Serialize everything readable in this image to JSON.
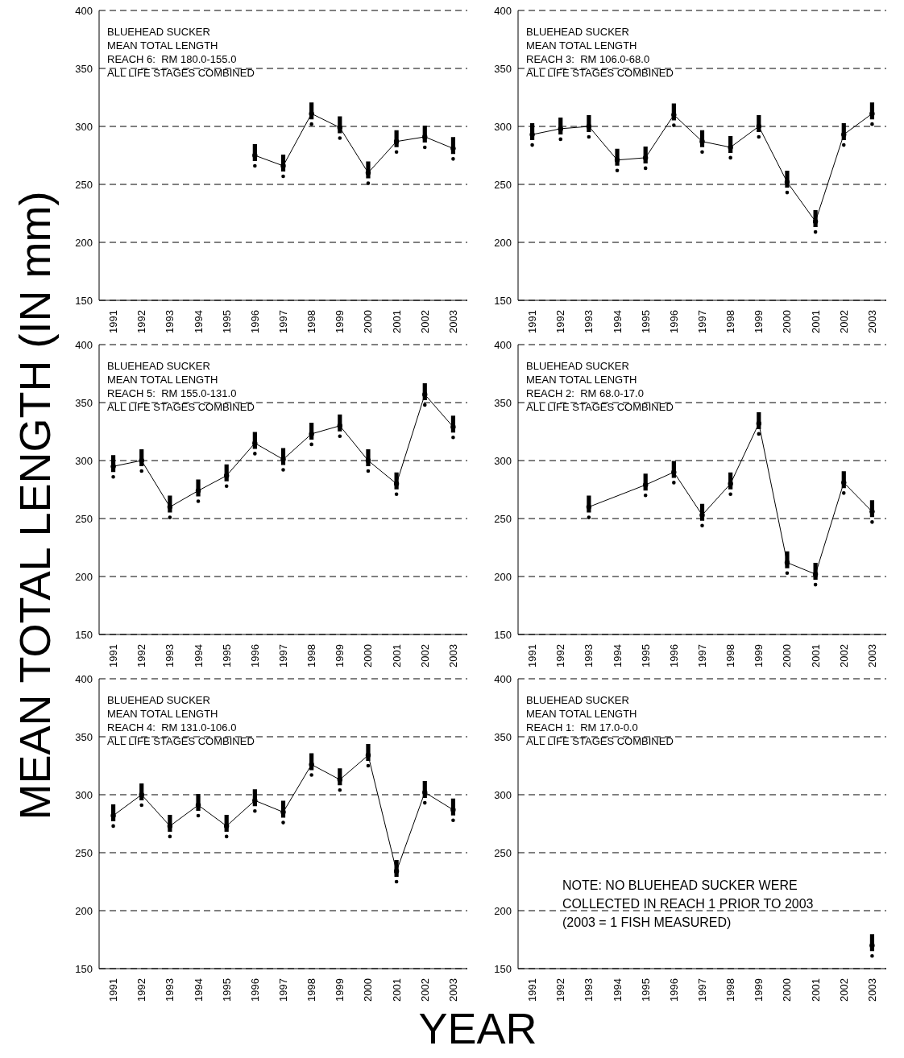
{
  "chart_data": [
    {
      "type": "line",
      "title": "BLUEHEAD SUCKER",
      "subtitle": "MEAN TOTAL LENGTH",
      "annotations": [
        "REACH 6:  RM 180.0-155.0",
        "ALL LIFE STAGES COMBINED"
      ],
      "ylabel": "MEAN TOTAL LENGTH (IN mm)",
      "xlabel": "YEAR",
      "categories": [
        "1991",
        "1992",
        "1993",
        "1994",
        "1995",
        "1996",
        "1997",
        "1998",
        "1999",
        "2000",
        "2001",
        "2002",
        "2003"
      ],
      "series": [
        {
          "color": "#000000",
          "values": [
            null,
            null,
            null,
            null,
            null,
            275,
            266,
            311,
            299,
            260,
            287,
            291,
            281
          ]
        }
      ],
      "ylim": [
        150,
        400
      ],
      "yticks": [
        150,
        200,
        250,
        300,
        350,
        400
      ],
      "grid": "y",
      "marker": "circle"
    },
    {
      "type": "line",
      "title": "BLUEHEAD SUCKER",
      "subtitle": "MEAN TOTAL LENGTH",
      "annotations": [
        "REACH 3:  RM 106.0-68.0",
        "ALL LIFE STAGES COMBINED"
      ],
      "categories": [
        "1991",
        "1992",
        "1993",
        "1994",
        "1995",
        "1996",
        "1997",
        "1998",
        "1999",
        "2000",
        "2001",
        "2002",
        "2003"
      ],
      "series": [
        {
          "color": "#000000",
          "values": [
            293,
            298,
            300,
            271,
            273,
            310,
            287,
            282,
            300,
            252,
            218,
            293,
            311
          ]
        }
      ],
      "ylim": [
        150,
        400
      ],
      "yticks": [
        150,
        200,
        250,
        300,
        350,
        400
      ],
      "grid": "y",
      "marker": "circle"
    },
    {
      "type": "line",
      "title": "BLUEHEAD SUCKER",
      "subtitle": "MEAN TOTAL LENGTH",
      "annotations": [
        "REACH 5:  RM 155.0-131.0",
        "ALL LIFE STAGES COMBINED"
      ],
      "categories": [
        "1991",
        "1992",
        "1993",
        "1994",
        "1995",
        "1996",
        "1997",
        "1998",
        "1999",
        "2000",
        "2001",
        "2002",
        "2003"
      ],
      "series": [
        {
          "color": "#000000",
          "values": [
            295,
            300,
            260,
            274,
            287,
            315,
            301,
            323,
            330,
            300,
            280,
            357,
            329
          ]
        }
      ],
      "ylim": [
        150,
        400
      ],
      "yticks": [
        150,
        200,
        250,
        300,
        350,
        400
      ],
      "grid": "y",
      "marker": "circle"
    },
    {
      "type": "line",
      "title": "BLUEHEAD SUCKER",
      "subtitle": "MEAN TOTAL LENGTH",
      "annotations": [
        "REACH 2:  RM 68.0-17.0",
        "ALL LIFE STAGES COMBINED"
      ],
      "categories": [
        "1991",
        "1992",
        "1993",
        "1994",
        "1995",
        "1996",
        "1997",
        "1998",
        "1999",
        "2000",
        "2001",
        "2002",
        "2003"
      ],
      "series": [
        {
          "color": "#000000",
          "values": [
            null,
            null,
            260,
            null,
            279,
            290,
            253,
            280,
            332,
            212,
            202,
            281,
            256
          ]
        }
      ],
      "ylim": [
        150,
        400
      ],
      "yticks": [
        150,
        200,
        250,
        300,
        350,
        400
      ],
      "grid": "y",
      "marker": "circle"
    },
    {
      "type": "line",
      "title": "BLUEHEAD SUCKER",
      "subtitle": "MEAN TOTAL LENGTH",
      "annotations": [
        "REACH 4:  RM 131.0-106.0",
        "ALL LIFE STAGES COMBINED"
      ],
      "categories": [
        "1991",
        "1992",
        "1993",
        "1994",
        "1995",
        "1996",
        "1997",
        "1998",
        "1999",
        "2000",
        "2001",
        "2002",
        "2003"
      ],
      "series": [
        {
          "color": "#000000",
          "values": [
            282,
            300,
            273,
            291,
            273,
            295,
            285,
            326,
            313,
            334,
            234,
            302,
            287
          ]
        }
      ],
      "ylim": [
        150,
        400
      ],
      "yticks": [
        150,
        200,
        250,
        300,
        350,
        400
      ],
      "grid": "y",
      "marker": "circle"
    },
    {
      "type": "line",
      "title": "BLUEHEAD SUCKER",
      "subtitle": "MEAN TOTAL LENGTH",
      "annotations": [
        "REACH 1:  RM 17.0-0.0",
        "ALL LIFE STAGES COMBINED",
        "NOTE:  NO BLUEHEAD SUCKER WERE COLLECTED IN REACH 1 PRIOR TO 2003 (2003 = 1 FISH MEASURED)"
      ],
      "categories": [
        "1991",
        "1992",
        "1993",
        "1994",
        "1995",
        "1996",
        "1997",
        "1998",
        "1999",
        "2000",
        "2001",
        "2002",
        "2003"
      ],
      "series": [
        {
          "color": "#000000",
          "values": [
            null,
            null,
            null,
            null,
            null,
            null,
            null,
            null,
            null,
            null,
            null,
            null,
            170
          ]
        }
      ],
      "ylim": [
        150,
        400
      ],
      "yticks": [
        150,
        200,
        250,
        300,
        350,
        400
      ],
      "grid": "y",
      "marker": "circle"
    }
  ]
}
